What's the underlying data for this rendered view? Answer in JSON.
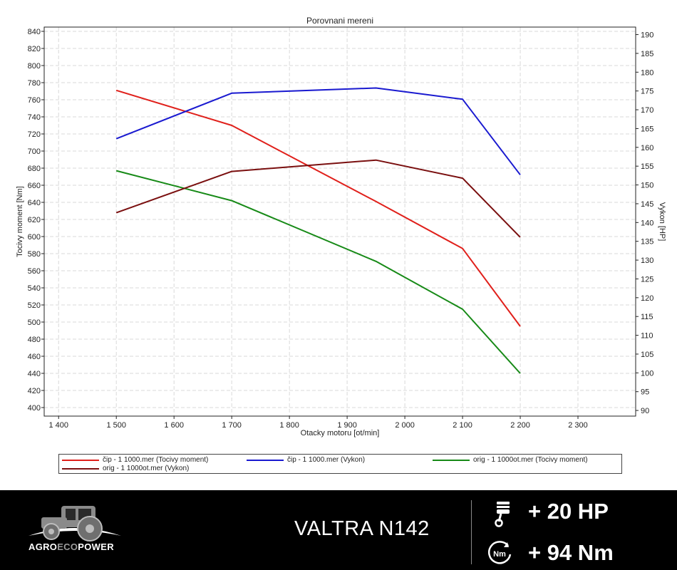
{
  "chart_data": {
    "type": "line",
    "title": "Porovnani mereni",
    "xlabel": "Otacky motoru [ot/min]",
    "ylabel": "Tocivy moment [Nm]",
    "y2label": "Vykon [HP]",
    "xlim": [
      1375,
      2400
    ],
    "ylim": [
      390,
      845
    ],
    "y2lim": [
      88.5,
      192
    ],
    "x_ticks": [
      1400,
      1500,
      1600,
      1700,
      1800,
      1900,
      2000,
      2100,
      2200,
      2300
    ],
    "x_tick_labels": [
      "1 400",
      "1 500",
      "1 600",
      "1 700",
      "1 800",
      "1 900",
      "2 000",
      "2 100",
      "2 200",
      "2 300"
    ],
    "y_ticks": [
      400,
      420,
      440,
      460,
      480,
      500,
      520,
      540,
      560,
      580,
      600,
      620,
      640,
      660,
      680,
      700,
      720,
      740,
      760,
      780,
      800,
      820,
      840
    ],
    "y2_ticks": [
      90,
      95,
      100,
      105,
      110,
      115,
      120,
      125,
      130,
      135,
      140,
      145,
      150,
      155,
      160,
      165,
      170,
      175,
      180,
      185,
      190
    ],
    "grid": true,
    "legend": "bottom",
    "series": [
      {
        "name": "čip - 1 1000.mer  (Tocivy moment)",
        "axis": "left",
        "color": "#e0201b",
        "x": [
          1500,
          1700,
          1950,
          2100,
          2200
        ],
        "y": [
          771,
          730,
          641,
          586,
          495
        ]
      },
      {
        "name": "čip - 1 1000.mer  (Vykon)",
        "axis": "right",
        "color": "#1a1ad0",
        "x": [
          1500,
          1700,
          1950,
          2100,
          2200
        ],
        "y": [
          162.3,
          174.4,
          175.8,
          172.8,
          152.7
        ]
      },
      {
        "name": "orig - 1 1000ot.mer  (Tocivy moment)",
        "axis": "left",
        "color": "#178a17",
        "x": [
          1500,
          1700,
          1950,
          2100,
          2200
        ],
        "y": [
          677,
          642,
          571,
          515,
          440
        ]
      },
      {
        "name": "orig - 1 1000ot.mer  (Vykon)",
        "axis": "right",
        "color": "#7a0f0f",
        "x": [
          1500,
          1700,
          1950,
          2100,
          2200
        ],
        "y": [
          142.6,
          153.6,
          156.6,
          151.8,
          136.1
        ]
      }
    ]
  },
  "footer": {
    "brand_part1": "AGRO",
    "brand_part2": "ECO",
    "brand_part3": "POWER",
    "model": "VALTRA N142",
    "power_gain": "+ 20 HP",
    "torque_gain": "+ 94 Nm",
    "torque_icon_label": "Nm",
    "power_icon": "piston-icon",
    "torque_icon": "torque-gauge-icon",
    "logo_icon": "tractor-icon"
  }
}
